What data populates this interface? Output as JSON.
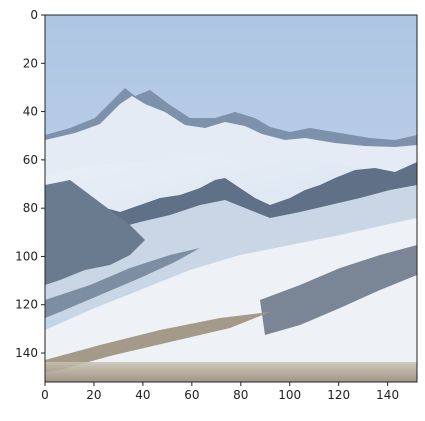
{
  "figure": {
    "image_description_name": "snowy-mountain-image",
    "x_ticks": [
      "0",
      "20",
      "40",
      "60",
      "80",
      "100",
      "120",
      "140"
    ],
    "y_ticks": [
      "0",
      "20",
      "40",
      "60",
      "80",
      "100",
      "120",
      "140"
    ],
    "x_tick_values": [
      0,
      20,
      40,
      60,
      80,
      100,
      120,
      140
    ],
    "y_tick_values": [
      0,
      20,
      40,
      60,
      80,
      100,
      120,
      140
    ],
    "extent": [
      0,
      152
    ]
  },
  "colors": {
    "sky": "#b7cde6",
    "snow": "#f1f4f8",
    "rock": "#5d6d80",
    "shadow": "#8aa0bb",
    "ground": "#9a8e79"
  }
}
